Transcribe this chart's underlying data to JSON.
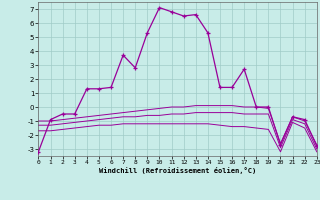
{
  "xlabel": "Windchill (Refroidissement éolien,°C)",
  "xlim": [
    0,
    23
  ],
  "ylim": [
    -3.5,
    7.5
  ],
  "yticks": [
    -3,
    -2,
    -1,
    0,
    1,
    2,
    3,
    4,
    5,
    6,
    7
  ],
  "xticks": [
    0,
    1,
    2,
    3,
    4,
    5,
    6,
    7,
    8,
    9,
    10,
    11,
    12,
    13,
    14,
    15,
    16,
    17,
    18,
    19,
    20,
    21,
    22,
    23
  ],
  "bg_color": "#c8ece8",
  "line_color": "#990099",
  "grid_color": "#a0ccc8",
  "curve1": {
    "x": [
      0,
      1,
      2,
      3,
      4,
      5,
      6,
      7,
      8,
      9,
      10,
      11,
      12,
      13,
      14,
      15,
      16,
      17,
      18,
      19,
      20,
      21,
      22,
      23
    ],
    "y": [
      -3.2,
      -0.9,
      -0.5,
      -0.5,
      1.3,
      1.3,
      1.4,
      3.7,
      2.8,
      5.3,
      7.1,
      6.8,
      6.5,
      6.6,
      5.3,
      1.4,
      1.4,
      2.7,
      0.0,
      0.0,
      -2.7,
      -0.7,
      -0.9,
      -2.8
    ]
  },
  "curve2": {
    "x": [
      0,
      1,
      2,
      3,
      4,
      5,
      6,
      7,
      8,
      9,
      10,
      11,
      12,
      13,
      14,
      15,
      16,
      17,
      18,
      19,
      20,
      21,
      22,
      23
    ],
    "y": [
      -1.0,
      -1.0,
      -0.9,
      -0.8,
      -0.7,
      -0.6,
      -0.5,
      -0.4,
      -0.3,
      -0.2,
      -0.1,
      0.0,
      0.0,
      0.1,
      0.1,
      0.1,
      0.1,
      0.0,
      0.0,
      -0.1,
      -2.6,
      -0.7,
      -1.0,
      -2.7
    ]
  },
  "curve3": {
    "x": [
      0,
      1,
      2,
      3,
      4,
      5,
      6,
      7,
      8,
      9,
      10,
      11,
      12,
      13,
      14,
      15,
      16,
      17,
      18,
      19,
      20,
      21,
      22,
      23
    ],
    "y": [
      -1.3,
      -1.3,
      -1.2,
      -1.1,
      -1.0,
      -0.9,
      -0.8,
      -0.7,
      -0.7,
      -0.6,
      -0.6,
      -0.5,
      -0.5,
      -0.4,
      -0.4,
      -0.4,
      -0.4,
      -0.5,
      -0.5,
      -0.5,
      -2.9,
      -0.9,
      -1.2,
      -3.0
    ]
  },
  "curve4": {
    "x": [
      0,
      1,
      2,
      3,
      4,
      5,
      6,
      7,
      8,
      9,
      10,
      11,
      12,
      13,
      14,
      15,
      16,
      17,
      18,
      19,
      20,
      21,
      22,
      23
    ],
    "y": [
      -1.7,
      -1.7,
      -1.6,
      -1.5,
      -1.4,
      -1.3,
      -1.3,
      -1.2,
      -1.2,
      -1.2,
      -1.2,
      -1.2,
      -1.2,
      -1.2,
      -1.2,
      -1.3,
      -1.4,
      -1.4,
      -1.5,
      -1.6,
      -3.2,
      -1.1,
      -1.5,
      -3.2
    ]
  }
}
